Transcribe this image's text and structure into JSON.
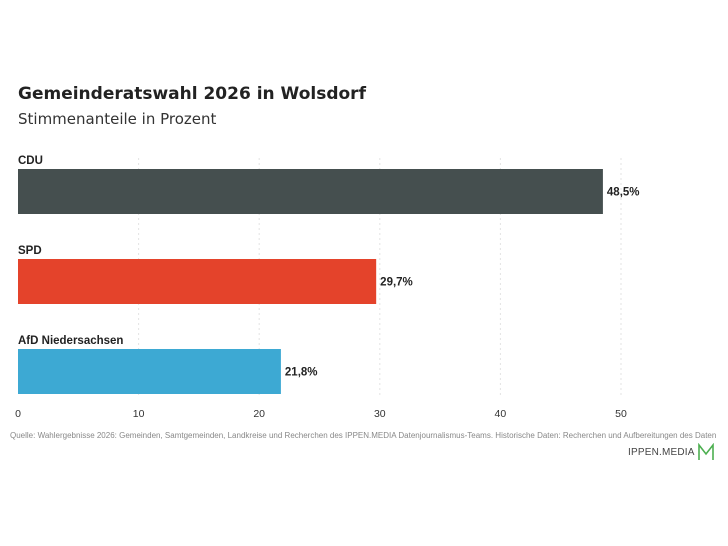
{
  "title": "Gemeinderatswahl 2026 in Wolsdorf",
  "subtitle": "Stimmenanteile in Prozent",
  "source": "Quelle: Wahlergebnisse 2026: Gemeinden, Samtgemeinden, Landkreise und Recherchen des IPPEN.MEDIA Datenjournalismus-Teams. Historische Daten: Recherchen und Aufbereitungen des Daten",
  "logo": {
    "text": "IPPEN.MEDIA",
    "accent": "#4caf50"
  },
  "chart_data": {
    "type": "bar",
    "orientation": "horizontal",
    "categories": [
      "CDU",
      "SPD",
      "AfD Niedersachsen"
    ],
    "values": [
      48.5,
      29.7,
      21.8
    ],
    "value_labels": [
      "48,5%",
      "29,7%",
      "21,8%"
    ],
    "colors": [
      "#454f4f",
      "#e4432b",
      "#3da9d3"
    ],
    "xlim": [
      0,
      50
    ],
    "xticks": [
      "0",
      "10",
      "20",
      "30",
      "40",
      "50"
    ],
    "grid": true
  }
}
